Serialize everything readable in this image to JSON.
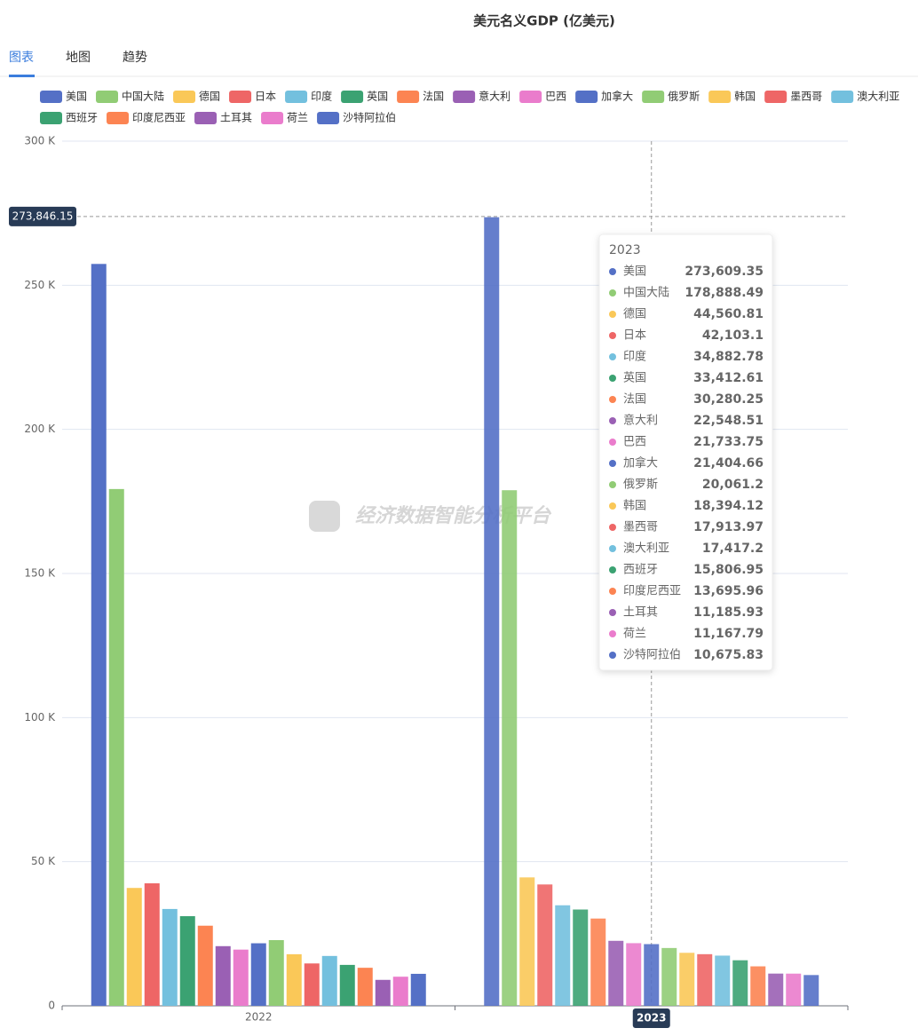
{
  "header": {
    "tabs": [
      "图表",
      "地图",
      "趋势"
    ],
    "active_tab": 0
  },
  "watermark": "经济数据智能分析平台",
  "chart_data": {
    "type": "bar",
    "title": "美元名义GDP (亿美元)",
    "categories": [
      "2022",
      "2023"
    ],
    "series": [
      {
        "name": "美国",
        "color": "#5470c6",
        "values": [
          257400,
          273609.35
        ]
      },
      {
        "name": "中国大陆",
        "color": "#91cc75",
        "values": [
          179300,
          178888.49
        ]
      },
      {
        "name": "德国",
        "color": "#fac858",
        "values": [
          40900,
          44560.81
        ]
      },
      {
        "name": "日本",
        "color": "#ee6666",
        "values": [
          42500,
          42103.1
        ]
      },
      {
        "name": "印度",
        "color": "#73c0de",
        "values": [
          33600,
          34882.78
        ]
      },
      {
        "name": "英国",
        "color": "#3ba272",
        "values": [
          31100,
          33412.61
        ]
      },
      {
        "name": "法国",
        "color": "#fc8452",
        "values": [
          27800,
          30280.25
        ]
      },
      {
        "name": "意大利",
        "color": "#9a60b4",
        "values": [
          20700,
          22548.51
        ]
      },
      {
        "name": "巴西",
        "color": "#ea7ccc",
        "values": [
          19500,
          21733.75
        ]
      },
      {
        "name": "加拿大",
        "color": "#5470c6",
        "values": [
          21700,
          21404.66
        ]
      },
      {
        "name": "俄罗斯",
        "color": "#91cc75",
        "values": [
          22800,
          20061.2
        ]
      },
      {
        "name": "韩国",
        "color": "#fac858",
        "values": [
          17900,
          18394.12
        ]
      },
      {
        "name": "墨西哥",
        "color": "#ee6666",
        "values": [
          14700,
          17913.97
        ]
      },
      {
        "name": "澳大利亚",
        "color": "#73c0de",
        "values": [
          17300,
          17417.2
        ]
      },
      {
        "name": "西班牙",
        "color": "#3ba272",
        "values": [
          14200,
          15806.95
        ]
      },
      {
        "name": "印度尼西亚",
        "color": "#fc8452",
        "values": [
          13200,
          13695.96
        ]
      },
      {
        "name": "土耳其",
        "color": "#9a60b4",
        "values": [
          9000,
          11185.93
        ]
      },
      {
        "name": "荷兰",
        "color": "#ea7ccc",
        "values": [
          10100,
          11167.79
        ]
      },
      {
        "name": "沙特阿拉伯",
        "color": "#5470c6",
        "values": [
          11100,
          10675.83
        ]
      }
    ],
    "ylim": [
      0,
      300000
    ],
    "yticks": [
      0,
      {
        "value": 50000,
        "label": "50 K"
      },
      {
        "value": 100000,
        "label": "100 K"
      },
      {
        "value": 150000,
        "label": "150 K"
      },
      {
        "value": 200000,
        "label": "200 K"
      },
      {
        "value": 250000,
        "label": "250 K"
      },
      {
        "value": 300000,
        "label": "300 K"
      }
    ],
    "grid": true,
    "axis_pointer": {
      "value": 273846.15,
      "label": "273,846.15",
      "category": 1
    },
    "tooltip": {
      "title": "2023",
      "value_labels": [
        "273,609.35",
        "178,888.49",
        "44,560.81",
        "42,103.1",
        "34,882.78",
        "33,412.61",
        "30,280.25",
        "22,548.51",
        "21,733.75",
        "21,404.66",
        "20,061.2",
        "18,394.12",
        "17,913.97",
        "17,417.2",
        "15,806.95",
        "13,695.96",
        "11,185.93",
        "11,167.79",
        "10,675.83"
      ]
    }
  }
}
